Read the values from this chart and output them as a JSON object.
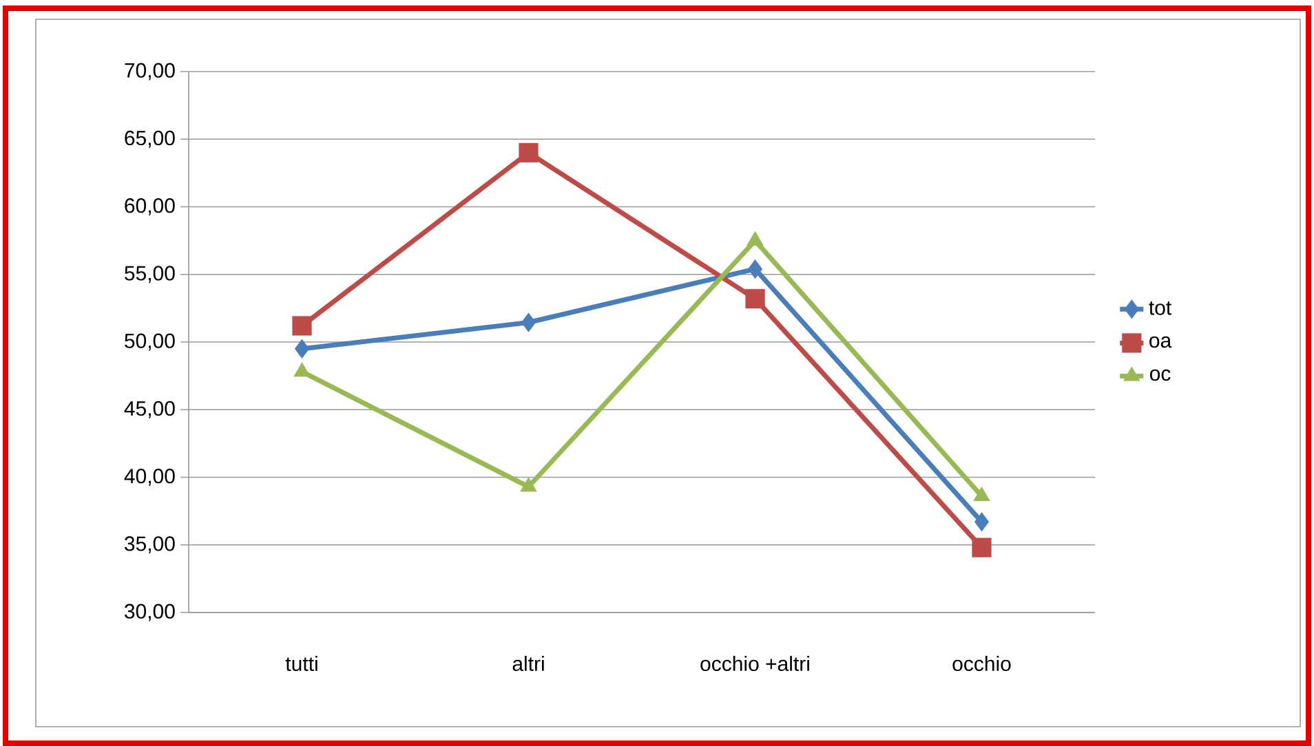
{
  "chart_data": {
    "type": "line",
    "categories": [
      "tutti",
      "altri",
      "occhio +altri",
      "occhio"
    ],
    "series": [
      {
        "name": "tot",
        "color": "#4a7ebb",
        "marker": "diamond",
        "values": [
          49.5,
          51.45,
          55.4,
          36.7
        ]
      },
      {
        "name": "oa",
        "color": "#be4b48",
        "marker": "square",
        "values": [
          51.2,
          64.0,
          53.2,
          34.8
        ]
      },
      {
        "name": "oc",
        "color": "#98b954",
        "marker": "triangle",
        "values": [
          47.8,
          39.3,
          57.5,
          38.6
        ]
      }
    ],
    "ylim": [
      30,
      70
    ],
    "yticks": [
      {
        "value": 30,
        "label": "30,00"
      },
      {
        "value": 35,
        "label": "35,00"
      },
      {
        "value": 40,
        "label": "40,00"
      },
      {
        "value": 45,
        "label": "45,00"
      },
      {
        "value": 50,
        "label": "50,00"
      },
      {
        "value": 55,
        "label": "55,00"
      },
      {
        "value": 60,
        "label": "60,00"
      },
      {
        "value": 65,
        "label": "65,00"
      },
      {
        "value": 70,
        "label": "70,00"
      }
    ],
    "grid": "y",
    "legend": "right",
    "line_style": "solid"
  }
}
